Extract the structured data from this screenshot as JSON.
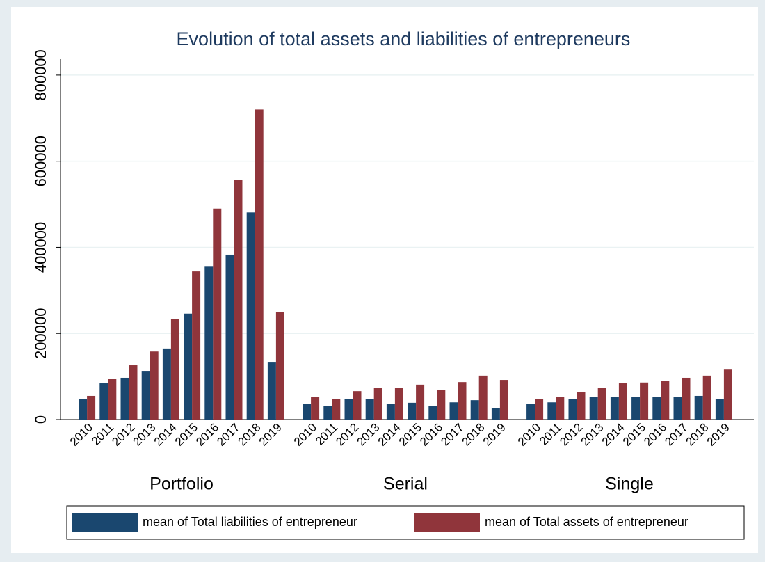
{
  "chart_data": {
    "type": "bar",
    "title": "Evolution of total assets and liabilities of entrepreneurs",
    "groups": [
      "Portfolio",
      "Serial",
      "Single"
    ],
    "categories": [
      "2010",
      "2011",
      "2012",
      "2013",
      "2014",
      "2015",
      "2016",
      "2017",
      "2018",
      "2019"
    ],
    "series": [
      {
        "name": "mean of Total liabilities of entrepreneur",
        "color": "#1a476f",
        "values": [
          [
            48000,
            84000,
            97000,
            113000,
            165000,
            246000,
            355000,
            383000,
            481000,
            134000
          ],
          [
            36000,
            32000,
            47000,
            48000,
            36000,
            39000,
            32000,
            40000,
            45000,
            26000
          ],
          [
            37000,
            40000,
            47000,
            52000,
            52000,
            52000,
            52000,
            52000,
            55000,
            48000
          ]
        ]
      },
      {
        "name": "mean of Total assets of entrepreneur",
        "color": "#90353b",
        "values": [
          [
            55000,
            95000,
            126000,
            158000,
            233000,
            344000,
            490000,
            557000,
            720000,
            250000
          ],
          [
            53000,
            48000,
            66000,
            73000,
            74000,
            81000,
            69000,
            87000,
            102000,
            92000
          ],
          [
            47000,
            53000,
            63000,
            74000,
            84000,
            86000,
            90000,
            97000,
            102000,
            116000
          ]
        ]
      }
    ],
    "ylim": [
      0,
      837000
    ],
    "yticks": [
      0,
      200000,
      400000,
      600000,
      800000
    ],
    "grid": true
  }
}
